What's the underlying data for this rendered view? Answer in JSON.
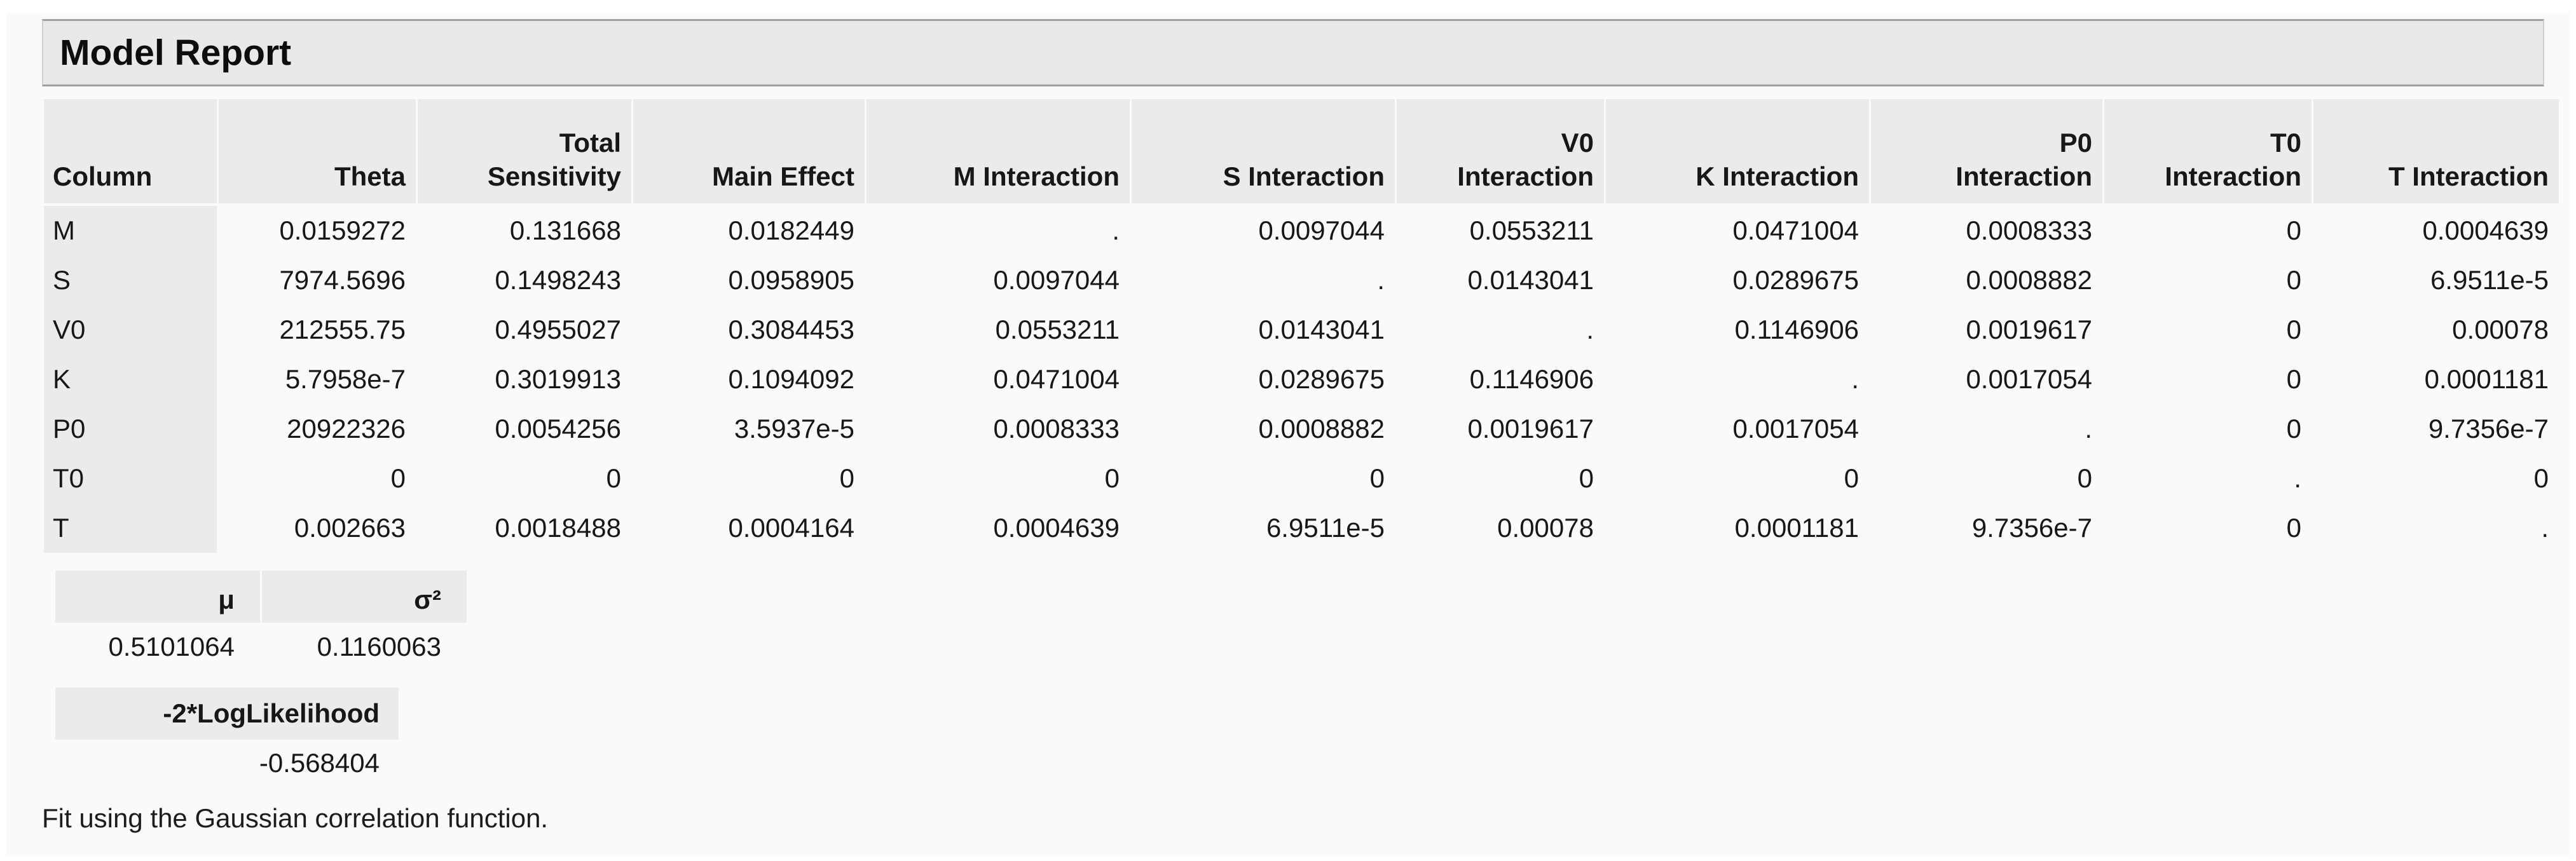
{
  "report": {
    "title": "Model Report",
    "footer": "Fit using the Gaussian correlation function."
  },
  "colors": {
    "header_cell_bg": "#ebebeb",
    "title_bar_bg": "#e9e9e9"
  },
  "main_table": {
    "columns": [
      "Column",
      "Theta",
      "Total\nSensitivity",
      "Main Effect",
      "M Interaction",
      "S Interaction",
      "V0\nInteraction",
      "K Interaction",
      "P0\nInteraction",
      "T0\nInteraction",
      "T Interaction"
    ],
    "rows": [
      {
        "name": "M",
        "values": [
          "0.0159272",
          "0.131668",
          "0.0182449",
          ".",
          "0.0097044",
          "0.0553211",
          "0.0471004",
          "0.0008333",
          "0",
          "0.0004639"
        ]
      },
      {
        "name": "S",
        "values": [
          "7974.5696",
          "0.1498243",
          "0.0958905",
          "0.0097044",
          ".",
          "0.0143041",
          "0.0289675",
          "0.0008882",
          "0",
          "6.9511e-5"
        ]
      },
      {
        "name": "V0",
        "values": [
          "212555.75",
          "0.4955027",
          "0.3084453",
          "0.0553211",
          "0.0143041",
          ".",
          "0.1146906",
          "0.0019617",
          "0",
          "0.00078"
        ]
      },
      {
        "name": "K",
        "values": [
          "5.7958e-7",
          "0.3019913",
          "0.1094092",
          "0.0471004",
          "0.0289675",
          "0.1146906",
          ".",
          "0.0017054",
          "0",
          "0.0001181"
        ]
      },
      {
        "name": "P0",
        "values": [
          "20922326",
          "0.0054256",
          "3.5937e-5",
          "0.0008333",
          "0.0008882",
          "0.0019617",
          "0.0017054",
          ".",
          "0",
          "9.7356e-7"
        ]
      },
      {
        "name": "T0",
        "values": [
          "0",
          "0",
          "0",
          "0",
          "0",
          "0",
          "0",
          "0",
          ".",
          "0"
        ]
      },
      {
        "name": "T",
        "values": [
          "0.002663",
          "0.0018488",
          "0.0004164",
          "0.0004639",
          "6.9511e-5",
          "0.00078",
          "0.0001181",
          "9.7356e-7",
          "0",
          "."
        ]
      }
    ]
  },
  "stats_table": {
    "headers": [
      "μ",
      "σ²"
    ],
    "values": [
      "0.5101064",
      "0.1160063"
    ]
  },
  "likelihood": {
    "label": "-2*LogLikelihood",
    "value": "-0.568404"
  }
}
